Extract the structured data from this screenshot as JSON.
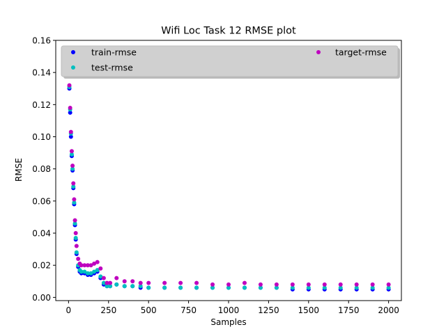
{
  "chart_data": {
    "type": "scatter",
    "title": "Wifi Loc Task 12 RMSE plot",
    "xlabel": "Samples",
    "ylabel": "RMSE",
    "xlim": [
      -80,
      2080
    ],
    "ylim": [
      -0.002,
      0.16
    ],
    "xticks": [
      0,
      250,
      500,
      750,
      1000,
      1250,
      1500,
      1750,
      2000
    ],
    "yticks": [
      0.0,
      0.02,
      0.04,
      0.06,
      0.08,
      0.1,
      0.12,
      0.14,
      0.16
    ],
    "ytick_labels": [
      "0.00",
      "0.02",
      "0.04",
      "0.06",
      "0.08",
      "0.10",
      "0.12",
      "0.14",
      "0.16"
    ],
    "grid": false,
    "legend": {
      "position": "top",
      "columns": 2
    },
    "series": [
      {
        "name": "train-rmse",
        "color": "#0000ff",
        "x": [
          0,
          5,
          10,
          15,
          20,
          25,
          30,
          35,
          40,
          45,
          50,
          60,
          70,
          80,
          100,
          120,
          140,
          160,
          180,
          200,
          220,
          240,
          260,
          300,
          350,
          400,
          450,
          500,
          600,
          700,
          800,
          900,
          1000,
          1100,
          1200,
          1300,
          1400,
          1500,
          1600,
          1700,
          1800,
          1900,
          2000
        ],
        "y": [
          0.143,
          0.13,
          0.115,
          0.1,
          0.088,
          0.079,
          0.068,
          0.058,
          0.045,
          0.036,
          0.027,
          0.019,
          0.016,
          0.015,
          0.015,
          0.014,
          0.014,
          0.015,
          0.016,
          0.012,
          0.008,
          0.007,
          0.007,
          0.008,
          0.007,
          0.007,
          0.006,
          0.006,
          0.006,
          0.006,
          0.006,
          0.006,
          0.006,
          0.006,
          0.006,
          0.006,
          0.005,
          0.005,
          0.005,
          0.005,
          0.005,
          0.005,
          0.005
        ]
      },
      {
        "name": "test-rmse",
        "color": "#00bfbf",
        "x": [
          0,
          5,
          10,
          15,
          20,
          25,
          30,
          35,
          40,
          45,
          50,
          60,
          70,
          80,
          100,
          120,
          140,
          160,
          180,
          200,
          220,
          240,
          260,
          300,
          350,
          400,
          450,
          500,
          600,
          700,
          800,
          900,
          1000,
          1100,
          1200,
          1300,
          1400,
          1500,
          1600,
          1700,
          1800,
          1900,
          2000
        ],
        "y": [
          0.144,
          0.131,
          0.117,
          0.102,
          0.089,
          0.08,
          0.069,
          0.059,
          0.046,
          0.037,
          0.028,
          0.02,
          0.017,
          0.016,
          0.016,
          0.015,
          0.015,
          0.016,
          0.017,
          0.013,
          0.009,
          0.007,
          0.007,
          0.008,
          0.007,
          0.007,
          0.007,
          0.006,
          0.006,
          0.006,
          0.006,
          0.006,
          0.006,
          0.006,
          0.006,
          0.006,
          0.006,
          0.006,
          0.006,
          0.006,
          0.006,
          0.006,
          0.006
        ]
      },
      {
        "name": "target-rmse",
        "color": "#bf00bf",
        "x": [
          0,
          5,
          10,
          15,
          20,
          25,
          30,
          35,
          40,
          45,
          50,
          60,
          70,
          80,
          100,
          120,
          140,
          160,
          180,
          200,
          220,
          240,
          260,
          300,
          350,
          400,
          450,
          500,
          600,
          700,
          800,
          900,
          1000,
          1100,
          1200,
          1300,
          1400,
          1500,
          1600,
          1700,
          1800,
          1900,
          2000
        ],
        "y": [
          0.14,
          0.132,
          0.118,
          0.103,
          0.091,
          0.082,
          0.071,
          0.061,
          0.048,
          0.04,
          0.032,
          0.024,
          0.021,
          0.02,
          0.02,
          0.02,
          0.02,
          0.021,
          0.022,
          0.018,
          0.012,
          0.009,
          0.009,
          0.012,
          0.01,
          0.01,
          0.009,
          0.009,
          0.009,
          0.009,
          0.009,
          0.008,
          0.008,
          0.009,
          0.008,
          0.008,
          0.008,
          0.008,
          0.008,
          0.008,
          0.008,
          0.008,
          0.008
        ]
      }
    ]
  }
}
